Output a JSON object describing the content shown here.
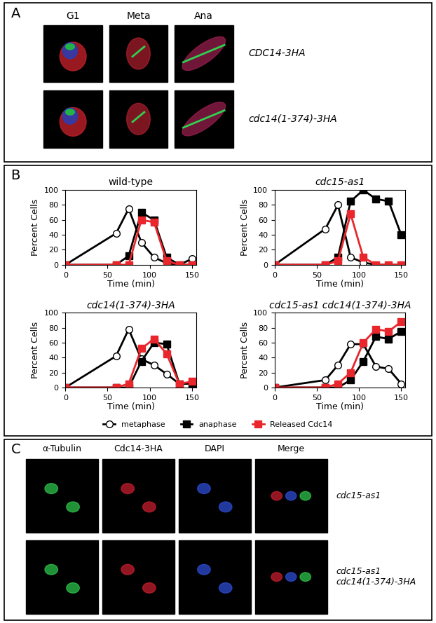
{
  "panel_labels": [
    "A",
    "B",
    "C"
  ],
  "panel_a": {
    "columns": [
      "G1",
      "Meta",
      "Ana"
    ],
    "rows": [
      "CDC14-3HA",
      "cdc14(1-374)-3HA"
    ]
  },
  "chart_data": [
    {
      "type": "line",
      "title": "wild-type",
      "x_label": "Time (min)",
      "y_label": "Percent Cells",
      "x": [
        0,
        60,
        75,
        90,
        105,
        120,
        135,
        150
      ],
      "xlim": [
        0,
        155
      ],
      "xticks": [
        0,
        50,
        100,
        150
      ],
      "ylim": [
        0,
        100
      ],
      "yticks": [
        0,
        20,
        40,
        60,
        80,
        100
      ],
      "series": [
        {
          "name": "metaphase",
          "color": "#000000",
          "marker": "circle_open",
          "values": [
            0,
            42,
            75,
            30,
            10,
            2,
            0,
            8
          ]
        },
        {
          "name": "anaphase",
          "color": "#000000",
          "marker": "square",
          "values": [
            0,
            0,
            12,
            70,
            60,
            10,
            0,
            0
          ]
        },
        {
          "name": "Released Cdc14",
          "color": "#e8262b",
          "marker": "square",
          "values": [
            0,
            0,
            0,
            60,
            57,
            5,
            0,
            0
          ]
        }
      ]
    },
    {
      "type": "line",
      "title": "cdc15-as1",
      "x_label": "Time (min)",
      "y_label": "Percent Cells",
      "x": [
        0,
        60,
        75,
        90,
        105,
        120,
        135,
        150
      ],
      "xlim": [
        0,
        155
      ],
      "xticks": [
        0,
        50,
        100,
        150
      ],
      "ylim": [
        0,
        100
      ],
      "yticks": [
        0,
        20,
        40,
        60,
        80,
        100
      ],
      "series": [
        {
          "name": "metaphase",
          "color": "#000000",
          "marker": "circle_open",
          "values": [
            0,
            48,
            80,
            10,
            3,
            0,
            0,
            0
          ]
        },
        {
          "name": "anaphase",
          "color": "#000000",
          "marker": "square",
          "values": [
            0,
            0,
            10,
            85,
            100,
            88,
            85,
            40
          ]
        },
        {
          "name": "Released Cdc14",
          "color": "#e8262b",
          "marker": "square",
          "values": [
            0,
            0,
            5,
            68,
            10,
            0,
            0,
            0
          ]
        }
      ]
    },
    {
      "type": "line",
      "title": "cdc14(1-374)-3HA",
      "x_label": "Time (min)",
      "y_label": "Percent Cells",
      "x": [
        0,
        60,
        75,
        90,
        105,
        120,
        135,
        150
      ],
      "xlim": [
        0,
        155
      ],
      "xticks": [
        0,
        50,
        100,
        150
      ],
      "ylim": [
        0,
        100
      ],
      "yticks": [
        0,
        20,
        40,
        60,
        80,
        100
      ],
      "series": [
        {
          "name": "metaphase",
          "color": "#000000",
          "marker": "circle_open",
          "values": [
            0,
            42,
            78,
            38,
            30,
            18,
            5,
            5
          ]
        },
        {
          "name": "anaphase",
          "color": "#000000",
          "marker": "square",
          "values": [
            0,
            0,
            0,
            35,
            60,
            58,
            5,
            5
          ]
        },
        {
          "name": "Released Cdc14",
          "color": "#e8262b",
          "marker": "square",
          "values": [
            0,
            0,
            5,
            52,
            65,
            45,
            5,
            8
          ]
        }
      ]
    },
    {
      "type": "line",
      "title": "cdc15-as1 cdc14(1-374)-3HA",
      "x_label": "Time (min)",
      "y_label": "Percent Cells",
      "x": [
        0,
        60,
        75,
        90,
        105,
        120,
        135,
        150
      ],
      "xlim": [
        0,
        155
      ],
      "xticks": [
        0,
        50,
        100,
        150
      ],
      "ylim": [
        0,
        100
      ],
      "yticks": [
        0,
        20,
        40,
        60,
        80,
        100
      ],
      "series": [
        {
          "name": "metaphase",
          "color": "#000000",
          "marker": "circle_open",
          "values": [
            0,
            10,
            30,
            58,
            58,
            28,
            25,
            5
          ]
        },
        {
          "name": "anaphase",
          "color": "#000000",
          "marker": "square",
          "values": [
            0,
            0,
            0,
            10,
            35,
            68,
            65,
            75
          ]
        },
        {
          "name": "Released Cdc14",
          "color": "#e8262b",
          "marker": "square",
          "values": [
            0,
            0,
            5,
            20,
            60,
            78,
            75,
            88
          ]
        }
      ]
    }
  ],
  "panel_c": {
    "columns": [
      "α-Tubulin",
      "Cdc14-3HA",
      "DAPI",
      "Merge"
    ],
    "rows": [
      [
        "cdc15-as1"
      ],
      [
        "cdc15-as1",
        "cdc14(1-374)-3HA"
      ]
    ]
  }
}
